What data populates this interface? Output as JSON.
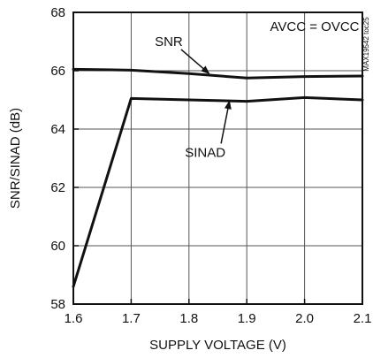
{
  "chart_data": {
    "type": "line",
    "x": [
      1.6,
      1.7,
      1.8,
      1.9,
      2.0,
      2.1
    ],
    "series": [
      {
        "name": "SNR",
        "values": [
          66.05,
          66.02,
          65.9,
          65.75,
          65.8,
          65.82
        ]
      },
      {
        "name": "SINAD",
        "values": [
          58.6,
          65.05,
          65.0,
          64.95,
          65.08,
          65.0
        ]
      }
    ],
    "xlabel": "SUPPLY VOLTAGE (V)",
    "ylabel": "SNR/SINAD (dB)",
    "xlim": [
      1.6,
      2.1
    ],
    "ylim": [
      58,
      68
    ],
    "xticks": [
      1.6,
      1.7,
      1.8,
      1.9,
      2.0,
      2.1
    ],
    "xtick_labels": [
      "1.6",
      "1.7",
      "1.8",
      "1.9",
      "2.0",
      "2.1"
    ],
    "yticks": [
      58,
      60,
      62,
      64,
      66,
      68
    ],
    "ytick_labels": [
      "58",
      "60",
      "62",
      "64",
      "66",
      "68"
    ],
    "grid": true,
    "condition_label": "AVCC = OVCC",
    "figure_id": "MAX19542 toc25",
    "series_labels": [
      {
        "text": "SNR",
        "x": 1.765,
        "y": 66.85,
        "arrow_to_x": 1.835,
        "arrow_to_y": 65.9
      },
      {
        "text": "SINAD",
        "x": 1.828,
        "y": 63.05,
        "arrow_to_x": 1.87,
        "arrow_to_y": 64.96
      }
    ],
    "colors": {
      "line": "#111111",
      "grid": "#555555",
      "background": "#ffffff"
    }
  }
}
